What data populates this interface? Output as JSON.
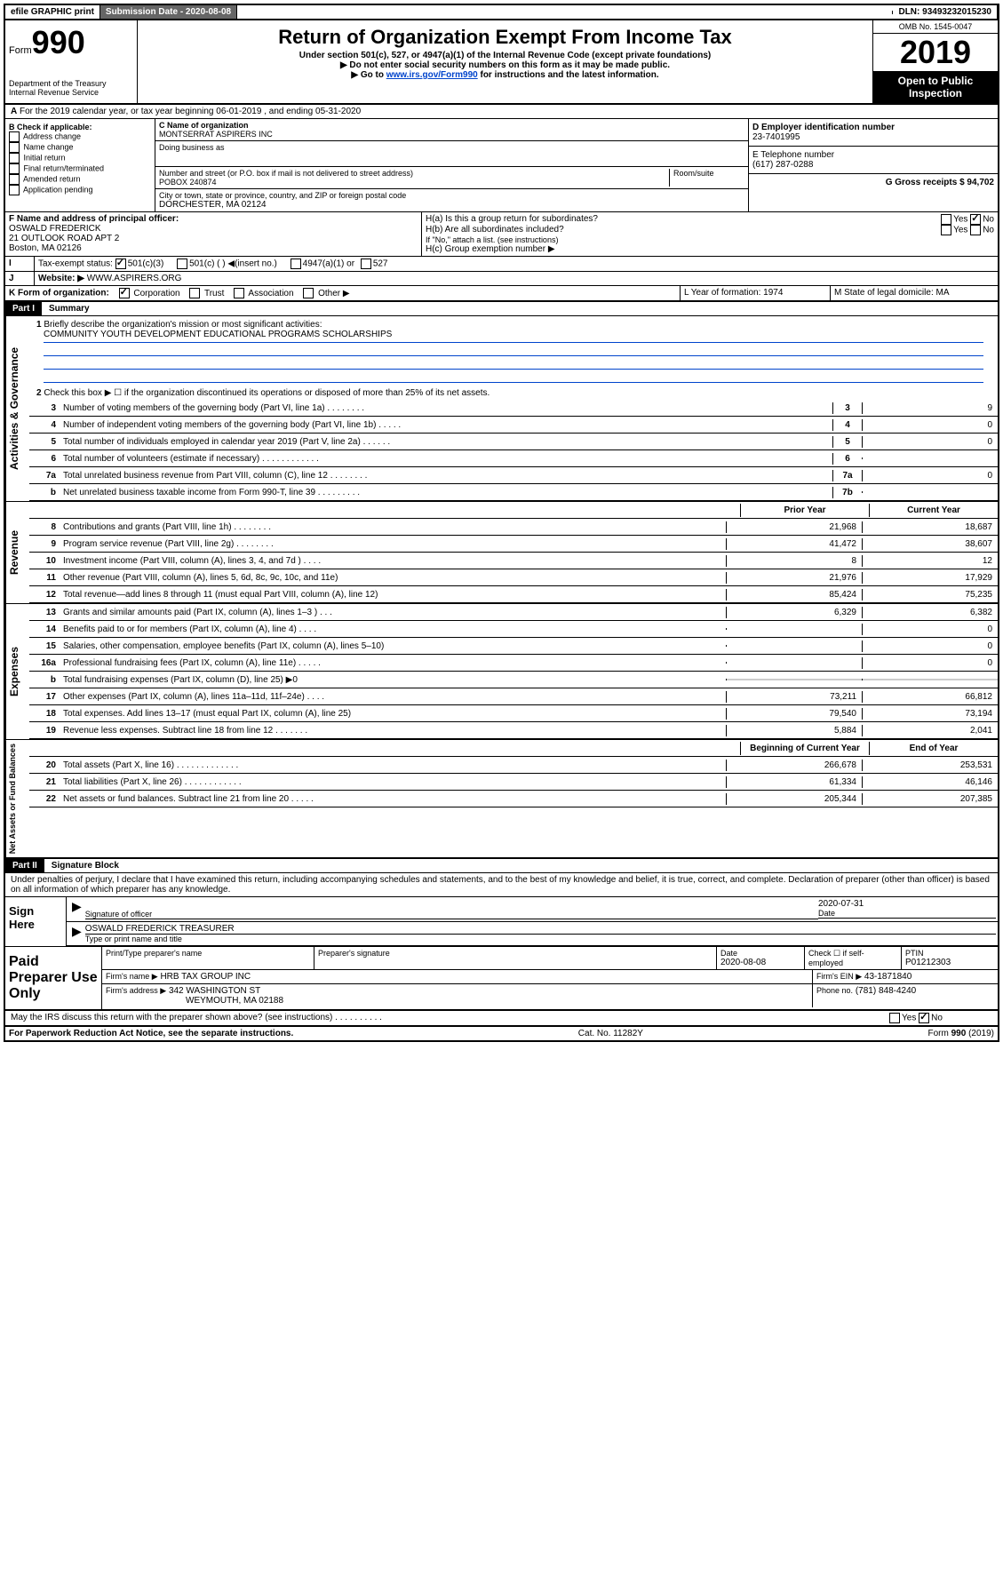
{
  "topbar": {
    "efile": "efile GRAPHIC print",
    "subdate_label": "Submission Date - 2020-08-08",
    "dln_label": "DLN: 93493232015230"
  },
  "header": {
    "form_label": "Form",
    "form_num": "990",
    "title": "Return of Organization Exempt From Income Tax",
    "sub1": "Under section 501(c), 527, or 4947(a)(1) of the Internal Revenue Code (except private foundations)",
    "sub2": "▶ Do not enter social security numbers on this form as it may be made public.",
    "sub3_pre": "▶ Go to ",
    "sub3_link": "www.irs.gov/Form990",
    "sub3_post": " for instructions and the latest information.",
    "dept": "Department of the Treasury\nInternal Revenue Service",
    "omb": "OMB No. 1545-0047",
    "year": "2019",
    "open": "Open to Public Inspection"
  },
  "section_a": "For the 2019 calendar year, or tax year beginning 06-01-2019    , and ending 05-31-2020",
  "b": {
    "label": "B Check if applicable:",
    "items": [
      "Address change",
      "Name change",
      "Initial return",
      "Final return/terminated",
      "Amended return",
      "Application pending"
    ]
  },
  "c": {
    "name_label": "C Name of organization",
    "name": "MONTSERRAT ASPIRERS INC",
    "dba_label": "Doing business as",
    "addr_label": "Number and street (or P.O. box if mail is not delivered to street address)",
    "room_label": "Room/suite",
    "addr": "POBOX 240874",
    "city_label": "City or town, state or province, country, and ZIP or foreign postal code",
    "city": "DORCHESTER, MA  02124"
  },
  "d": {
    "ein_label": "D Employer identification number",
    "ein": "23-7401995",
    "tel_label": "E Telephone number",
    "tel": "(617) 287-0288",
    "gross_label": "G Gross receipts $ 94,702"
  },
  "f": {
    "label": "F  Name and address of principal officer:",
    "name": "OSWALD FREDERICK",
    "addr1": "21 OUTLOOK ROAD APT 2",
    "addr2": "Boston, MA  02126"
  },
  "h": {
    "a_label": "H(a)  Is this a group return for subordinates?",
    "b_label": "H(b)  Are all subordinates included?",
    "note": "If \"No,\" attach a list. (see instructions)",
    "c_label": "H(c)  Group exemption number ▶"
  },
  "i": {
    "label": "Tax-exempt status:",
    "opt1": "501(c)(3)",
    "opt2": "501(c) (  ) ◀(insert no.)",
    "opt3": "4947(a)(1) or",
    "opt4": "527"
  },
  "j": {
    "label": "Website: ▶",
    "url": "WWW.ASPIRERS.ORG"
  },
  "k": {
    "label": "K Form of organization:",
    "opts": [
      "Corporation",
      "Trust",
      "Association",
      "Other ▶"
    ]
  },
  "l": {
    "label": "L Year of formation: 1974"
  },
  "m": {
    "label": "M State of legal domicile: MA"
  },
  "part1": {
    "header": "Part I",
    "title": "Summary",
    "line1_label": "Briefly describe the organization's mission or most significant activities:",
    "mission": "COMMUNITY YOUTH DEVELOPMENT EDUCATIONAL PROGRAMS SCHOLARSHIPS",
    "line2": "Check this box ▶ ☐  if the organization discontinued its operations or disposed of more than 25% of its net assets.",
    "lines_gov": [
      {
        "n": "3",
        "d": "Number of voting members of the governing body (Part VI, line 1a)  .  .  .  .  .  .  .  .",
        "box": "3",
        "v": "9"
      },
      {
        "n": "4",
        "d": "Number of independent voting members of the governing body (Part VI, line 1b)  .  .  .  .  .",
        "box": "4",
        "v": "0"
      },
      {
        "n": "5",
        "d": "Total number of individuals employed in calendar year 2019 (Part V, line 2a)  .  .  .  .  .  .",
        "box": "5",
        "v": "0"
      },
      {
        "n": "6",
        "d": "Total number of volunteers (estimate if necessary)  .  .  .  .  .  .  .  .  .  .  .  .",
        "box": "6",
        "v": ""
      },
      {
        "n": "7a",
        "d": "Total unrelated business revenue from Part VIII, column (C), line 12  .  .  .  .  .  .  .  .",
        "box": "7a",
        "v": "0"
      },
      {
        "n": "b",
        "d": "Net unrelated business taxable income from Form 990-T, line 39  .  .  .  .  .  .  .  .  .",
        "box": "7b",
        "v": ""
      }
    ],
    "col_prior": "Prior Year",
    "col_current": "Current Year",
    "lines_rev": [
      {
        "n": "8",
        "d": "Contributions and grants (Part VIII, line 1h)  .  .  .  .  .  .  .  .",
        "p": "21,968",
        "c": "18,687"
      },
      {
        "n": "9",
        "d": "Program service revenue (Part VIII, line 2g)  .  .  .  .  .  .  .  .",
        "p": "41,472",
        "c": "38,607"
      },
      {
        "n": "10",
        "d": "Investment income (Part VIII, column (A), lines 3, 4, and 7d )  .  .  .  .",
        "p": "8",
        "c": "12"
      },
      {
        "n": "11",
        "d": "Other revenue (Part VIII, column (A), lines 5, 6d, 8c, 9c, 10c, and 11e)",
        "p": "21,976",
        "c": "17,929"
      },
      {
        "n": "12",
        "d": "Total revenue—add lines 8 through 11 (must equal Part VIII, column (A), line 12)",
        "p": "85,424",
        "c": "75,235"
      }
    ],
    "lines_exp": [
      {
        "n": "13",
        "d": "Grants and similar amounts paid (Part IX, column (A), lines 1–3 )  .  .  .",
        "p": "6,329",
        "c": "6,382"
      },
      {
        "n": "14",
        "d": "Benefits paid to or for members (Part IX, column (A), line 4)  .  .  .  .",
        "p": "",
        "c": "0"
      },
      {
        "n": "15",
        "d": "Salaries, other compensation, employee benefits (Part IX, column (A), lines 5–10)",
        "p": "",
        "c": "0"
      },
      {
        "n": "16a",
        "d": "Professional fundraising fees (Part IX, column (A), line 11e)  .  .  .  .  .",
        "p": "",
        "c": "0"
      },
      {
        "n": "b",
        "d": "Total fundraising expenses (Part IX, column (D), line 25) ▶0",
        "p": "shaded",
        "c": "shaded"
      },
      {
        "n": "17",
        "d": "Other expenses (Part IX, column (A), lines 11a–11d, 11f–24e)  .  .  .  .",
        "p": "73,211",
        "c": "66,812"
      },
      {
        "n": "18",
        "d": "Total expenses. Add lines 13–17 (must equal Part IX, column (A), line 25)",
        "p": "79,540",
        "c": "73,194"
      },
      {
        "n": "19",
        "d": "Revenue less expenses. Subtract line 18 from line 12  .  .  .  .  .  .  .",
        "p": "5,884",
        "c": "2,041"
      }
    ],
    "col_begin": "Beginning of Current Year",
    "col_end": "End of Year",
    "lines_net": [
      {
        "n": "20",
        "d": "Total assets (Part X, line 16)  .  .  .  .  .  .  .  .  .  .  .  .  .",
        "p": "266,678",
        "c": "253,531"
      },
      {
        "n": "21",
        "d": "Total liabilities (Part X, line 26)  .  .  .  .  .  .  .  .  .  .  .  .",
        "p": "61,334",
        "c": "46,146"
      },
      {
        "n": "22",
        "d": "Net assets or fund balances. Subtract line 21 from line 20  .  .  .  .  .",
        "p": "205,344",
        "c": "207,385"
      }
    ],
    "vert_gov": "Activities & Governance",
    "vert_rev": "Revenue",
    "vert_exp": "Expenses",
    "vert_net": "Net Assets or Fund Balances"
  },
  "part2": {
    "header": "Part II",
    "title": "Signature Block",
    "declaration": "Under penalties of perjury, I declare that I have examined this return, including accompanying schedules and statements, and to the best of my knowledge and belief, it is true, correct, and complete. Declaration of preparer (other than officer) is based on all information of which preparer has any knowledge."
  },
  "sign": {
    "label": "Sign Here",
    "sig_label": "Signature of officer",
    "date": "2020-07-31",
    "date_label": "Date",
    "name": "OSWALD FREDERICK TREASURER",
    "name_label": "Type or print name and title"
  },
  "prep": {
    "label": "Paid Preparer Use Only",
    "col1": "Print/Type preparer's name",
    "col2": "Preparer's signature",
    "col3_label": "Date",
    "col3": "2020-08-08",
    "col4": "Check ☐ if self-employed",
    "col5_label": "PTIN",
    "col5": "P01212303",
    "firm_label": "Firm's name    ▶",
    "firm": "HRB TAX GROUP INC",
    "ein_label": "Firm's EIN ▶",
    "ein": "43-1871840",
    "addr_label": "Firm's address ▶",
    "addr1": "342 WASHINGTON ST",
    "addr2": "WEYMOUTH, MA  02188",
    "phone_label": "Phone no.",
    "phone": "(781) 848-4240"
  },
  "discuss": "May the IRS discuss this return with the preparer shown above? (see instructions)   .   .   .   .   .   .   .   .   .   .",
  "footer": {
    "left": "For Paperwork Reduction Act Notice, see the separate instructions.",
    "mid": "Cat. No. 11282Y",
    "right": "Form 990 (2019)"
  }
}
